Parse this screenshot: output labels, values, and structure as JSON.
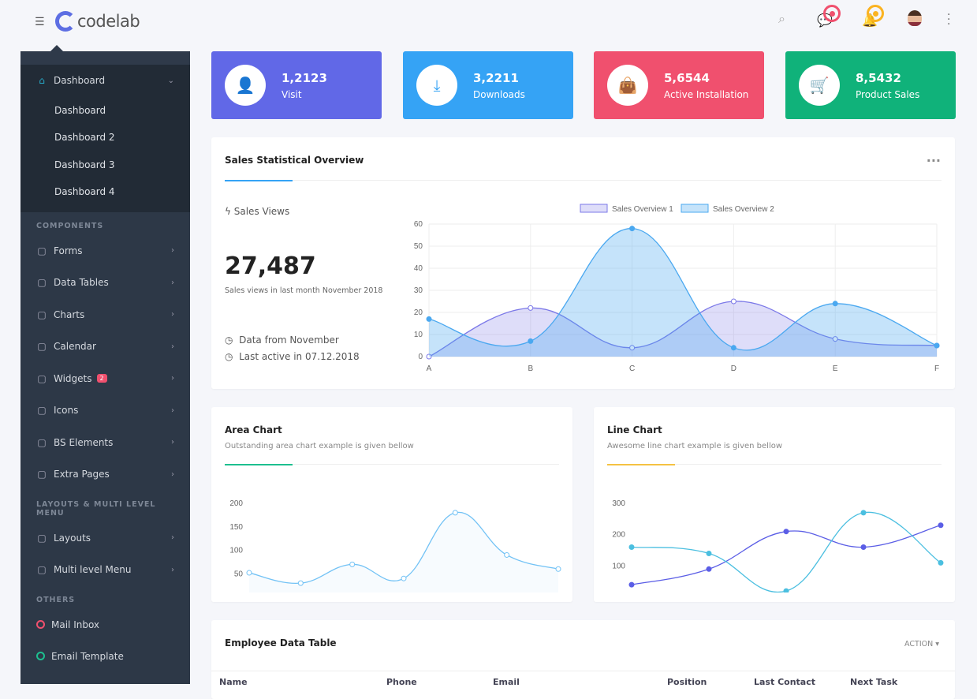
{
  "header": {
    "brand": "codelab",
    "icons": [
      "menu-icon",
      "search-icon",
      "chat-icon",
      "bell-icon",
      "avatar",
      "more-vertical-icon"
    ],
    "chat_dot_color": "#f0506e",
    "bell_dot_color": "#fbb320"
  },
  "sidebar": {
    "dashboard": {
      "label": "Dashboard",
      "sub": [
        "Dashboard",
        "Dashboard 2",
        "Dashboard 3",
        "Dashboard 4"
      ]
    },
    "components_head": "COMPONENTS",
    "components": [
      {
        "label": "Forms",
        "icon": "form-icon"
      },
      {
        "label": "Data Tables",
        "icon": "grid-icon"
      },
      {
        "label": "Charts",
        "icon": "pie-chart-icon"
      },
      {
        "label": "Calendar",
        "icon": "calendar-icon"
      },
      {
        "label": "Widgets",
        "icon": "monitor-icon",
        "badge": "2"
      },
      {
        "label": "Icons",
        "icon": "edit-icon"
      },
      {
        "label": "BS Elements",
        "icon": "copy-icon"
      },
      {
        "label": "Extra Pages",
        "icon": "sliders-icon"
      }
    ],
    "layouts_head": "LAYOUTS & MULTI LEVEL MENU",
    "layouts": [
      {
        "label": "Layouts",
        "icon": "layout-icon"
      },
      {
        "label": "Multi level Menu",
        "icon": "paint-bucket-icon"
      }
    ],
    "others_head": "OTHERS",
    "others": [
      {
        "label": "Mail Inbox",
        "color": "#f0506e"
      },
      {
        "label": "Email Template",
        "color": "#1dbf8f"
      }
    ]
  },
  "stats": [
    {
      "value": "1,2123",
      "label": "Visit",
      "color": "#6168e7",
      "icon": "user-icon"
    },
    {
      "value": "3,2211",
      "label": "Downloads",
      "color": "#35a3f5",
      "icon": "download-icon"
    },
    {
      "value": "5,6544",
      "label": "Active Installation",
      "color": "#f0506e",
      "icon": "shopping-bag-icon"
    },
    {
      "value": "8,5432",
      "label": "Product Sales",
      "color": "#10b27a",
      "icon": "cart-icon"
    }
  ],
  "overview": {
    "title": "Sales Statistical Overview",
    "views_label": "Sales Views",
    "views_value": "27,487",
    "views_note": "Sales views in last month November 2018",
    "info1": "Data from November",
    "info2": "Last active in 07.12.2018"
  },
  "area_card": {
    "title": "Area Chart",
    "subtitle": "Outstanding area chart example is given bellow"
  },
  "line_card": {
    "title": "Line Chart",
    "subtitle": "Awesome line chart example is given bellow"
  },
  "table": {
    "title": "Employee Data Table",
    "action": "ACTION",
    "columns": [
      "Name",
      "Phone",
      "Email",
      "Position",
      "Last Contact",
      "Next Task"
    ]
  },
  "chart_data": [
    {
      "type": "area",
      "categories": [
        "A",
        "B",
        "C",
        "D",
        "E",
        "F"
      ],
      "ylim": [
        0,
        60
      ],
      "yticks": [
        0,
        10,
        20,
        30,
        40,
        50,
        60
      ],
      "grid": true,
      "legend": "top",
      "series": [
        {
          "name": "Sales Overview 1",
          "values": [
            0,
            22,
            4,
            25,
            8,
            5
          ],
          "color": "#7b78e8"
        },
        {
          "name": "Sales Overview 2",
          "values": [
            17,
            7,
            58,
            4,
            24,
            5
          ],
          "color": "#4aa8f0"
        }
      ]
    },
    {
      "type": "area",
      "ylim": [
        0,
        200
      ],
      "yticks": [
        0,
        50,
        100,
        150,
        200
      ],
      "grid": false,
      "series": [
        {
          "values": [
            52,
            30,
            70,
            40,
            180,
            90,
            60
          ],
          "color": "#72c2f5"
        }
      ]
    },
    {
      "type": "line",
      "ylim": [
        0,
        300
      ],
      "yticks": [
        0,
        100,
        200,
        300
      ],
      "grid": false,
      "series": [
        {
          "values": [
            40,
            90,
            210,
            160,
            230
          ],
          "color": "#5b5ee6"
        },
        {
          "values": [
            160,
            140,
            20,
            270,
            110
          ],
          "color": "#4bbfe0"
        }
      ]
    }
  ]
}
